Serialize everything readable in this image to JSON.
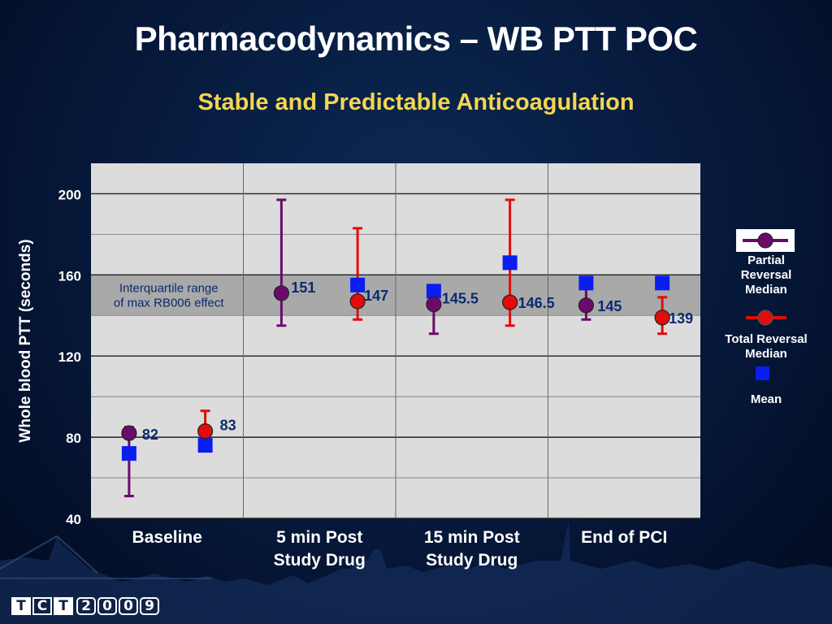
{
  "slide": {
    "title": "Pharmacodynamics – WB PTT POC",
    "subtitle": "Stable and Predictable Anticoagulation",
    "logo": {
      "letters": [
        "T",
        "C",
        "T"
      ],
      "year_digits": [
        "2",
        "0",
        "0",
        "9"
      ]
    }
  },
  "colors": {
    "title": "#ffffff",
    "subtitle": "#f2d650",
    "plot_bg": "#dcdcdc",
    "band": "#a9a9a9",
    "partial": "#6b0a6b",
    "total": "#e30b0b",
    "mean": "#0a1ef0",
    "data_label": "#0b2a70"
  },
  "chart_data": {
    "type": "scatter",
    "ylabel": "Whole blood PTT (seconds)",
    "ylim": [
      40,
      215
    ],
    "yticks": [
      40,
      80,
      120,
      160,
      200
    ],
    "categories": [
      "Baseline",
      "5 min Post Study Drug",
      "15 min Post Study Drug",
      "End of PCI"
    ],
    "category_lines": [
      [
        "Baseline"
      ],
      [
        "5 min Post",
        "Study Drug"
      ],
      [
        "15 min Post",
        "Study Drug"
      ],
      [
        "End of PCI"
      ]
    ],
    "band": {
      "y_low": 140,
      "y_high": 160,
      "text_lines": [
        "Interquartile range",
        "of max RB006 effect"
      ]
    },
    "series": [
      {
        "name": "Partial Reversal Median",
        "marker": "circle",
        "median": [
          82,
          151,
          145.5,
          145
        ],
        "q1": [
          51,
          135,
          131,
          138
        ],
        "q3": [
          85,
          197,
          152,
          158
        ],
        "mean": [
          72,
          null,
          152,
          156
        ],
        "labels": [
          "82",
          "151",
          "145.5",
          "145"
        ]
      },
      {
        "name": "Total Reversal Median",
        "marker": "circle",
        "median": [
          83,
          147,
          146.5,
          139
        ],
        "q1": [
          79,
          138,
          135,
          131
        ],
        "q3": [
          93,
          183,
          197,
          149
        ],
        "mean": [
          76,
          155,
          166,
          156
        ],
        "labels": [
          "83",
          "147",
          "146.5",
          "139"
        ]
      }
    ],
    "legend": {
      "position": "right",
      "entries": [
        {
          "label_lines": [
            "Partial",
            "Reversal",
            "Median"
          ]
        },
        {
          "label_lines": [
            "Total Reversal",
            "Median"
          ]
        },
        {
          "label_lines": [
            "Mean"
          ]
        }
      ]
    }
  }
}
